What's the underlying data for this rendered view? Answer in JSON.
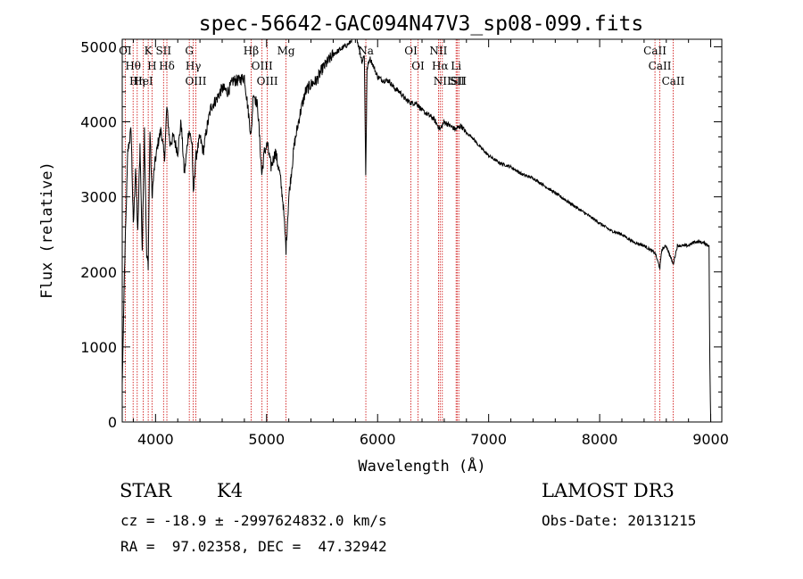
{
  "chart_data": {
    "type": "line",
    "title": "spec-56642-GAC094N47V3_sp08-099.fits",
    "xlabel": "Wavelength (Å)",
    "ylabel": "Flux (relative)",
    "xlim": [
      3700,
      9100
    ],
    "ylim": [
      0,
      5100
    ],
    "xticks": [
      4000,
      5000,
      6000,
      7000,
      8000,
      9000
    ],
    "yticks": [
      0,
      1000,
      2000,
      3000,
      4000,
      5000
    ],
    "series": [
      {
        "name": "spectrum",
        "x": [
          3700,
          3720,
          3750,
          3780,
          3800,
          3820,
          3840,
          3860,
          3880,
          3900,
          3920,
          3934,
          3950,
          3968,
          3990,
          4020,
          4050,
          4080,
          4102,
          4130,
          4160,
          4200,
          4230,
          4260,
          4300,
          4330,
          4340,
          4360,
          4400,
          4430,
          4460,
          4500,
          4550,
          4600,
          4650,
          4700,
          4750,
          4800,
          4861,
          4880,
          4920,
          4957,
          4980,
          5007,
          5040,
          5080,
          5120,
          5150,
          5175,
          5200,
          5250,
          5300,
          5350,
          5400,
          5450,
          5500,
          5550,
          5600,
          5650,
          5700,
          5750,
          5800,
          5830,
          5860,
          5880,
          5893,
          5905,
          5930,
          5960,
          6000,
          6050,
          6100,
          6150,
          6200,
          6250,
          6300,
          6350,
          6400,
          6450,
          6500,
          6563,
          6600,
          6650,
          6700,
          6750,
          6800,
          6850,
          6900,
          7000,
          7100,
          7200,
          7300,
          7400,
          7500,
          7600,
          7700,
          7800,
          7900,
          8000,
          8100,
          8200,
          8300,
          8400,
          8450,
          8500,
          8542,
          8560,
          8600,
          8662,
          8700,
          8750,
          8800,
          8850,
          8900,
          8950,
          8985,
          8992,
          9000
        ],
        "y": [
          500,
          2000,
          3600,
          3900,
          2600,
          3400,
          2500,
          3700,
          2300,
          3900,
          2200,
          2100,
          3900,
          3000,
          3400,
          3700,
          3900,
          3500,
          4200,
          3700,
          3800,
          3600,
          4000,
          3300,
          3900,
          3700,
          3000,
          3500,
          3800,
          3600,
          3900,
          4200,
          4300,
          4450,
          4400,
          4550,
          4550,
          4600,
          3800,
          4400,
          4200,
          3300,
          3600,
          3700,
          3400,
          3600,
          3300,
          2900,
          2300,
          3000,
          3700,
          4100,
          4400,
          4500,
          4550,
          4700,
          4800,
          4900,
          4950,
          5000,
          5050,
          5200,
          5000,
          4800,
          4900,
          3300,
          4700,
          4850,
          4750,
          4600,
          4550,
          4550,
          4450,
          4400,
          4300,
          4250,
          4250,
          4150,
          4100,
          4050,
          3900,
          4000,
          3950,
          3900,
          3950,
          3850,
          3800,
          3700,
          3550,
          3450,
          3400,
          3300,
          3250,
          3150,
          3050,
          2950,
          2850,
          2750,
          2650,
          2550,
          2500,
          2400,
          2350,
          2300,
          2250,
          2050,
          2300,
          2350,
          2100,
          2350,
          2350,
          2350,
          2400,
          2400,
          2380,
          2350,
          800,
          0
        ]
      }
    ],
    "lines": [
      {
        "label": "OI",
        "wavelength": 3727
      },
      {
        "label": "Hθ",
        "wavelength": 3798
      },
      {
        "label": "Hη",
        "wavelength": 3835
      },
      {
        "label": "HeI",
        "wavelength": 3889
      },
      {
        "label": "K",
        "wavelength": 3934
      },
      {
        "label": "H",
        "wavelength": 3968
      },
      {
        "label": "SII",
        "wavelength": 4072
      },
      {
        "label": "Hδ",
        "wavelength": 4102
      },
      {
        "label": "G",
        "wavelength": 4304
      },
      {
        "label": "Hγ",
        "wavelength": 4340
      },
      {
        "label": "OIII",
        "wavelength": 4363
      },
      {
        "label": "Hβ",
        "wavelength": 4861
      },
      {
        "label": "OIII",
        "wavelength": 4959
      },
      {
        "label": "OIII",
        "wavelength": 5007
      },
      {
        "label": "Mg",
        "wavelength": 5175
      },
      {
        "label": "Na",
        "wavelength": 5894
      },
      {
        "label": "OI",
        "wavelength": 6300
      },
      {
        "label": "OI",
        "wavelength": 6364
      },
      {
        "label": "NII",
        "wavelength": 6548
      },
      {
        "label": "Hα",
        "wavelength": 6563
      },
      {
        "label": "NII",
        "wavelength": 6583
      },
      {
        "label": "Li",
        "wavelength": 6707
      },
      {
        "label": "SII",
        "wavelength": 6716
      },
      {
        "label": "SII",
        "wavelength": 6731
      },
      {
        "label": "CaII",
        "wavelength": 8498
      },
      {
        "label": "CaII",
        "wavelength": 8542
      },
      {
        "label": "CaII",
        "wavelength": 8662
      }
    ]
  },
  "info": {
    "class": "STAR",
    "subclass": "K4",
    "cz_line": "cz = -18.9 ± -2997624832.0 km/s",
    "coords_line": "RA =  97.02358, DEC =  47.32942",
    "survey": "LAMOST DR3",
    "obs_date": "Obs-Date: 20131215"
  },
  "colors": {
    "spectrum": "#000000",
    "line_marker": "#cc0000",
    "axis": "#000000"
  }
}
